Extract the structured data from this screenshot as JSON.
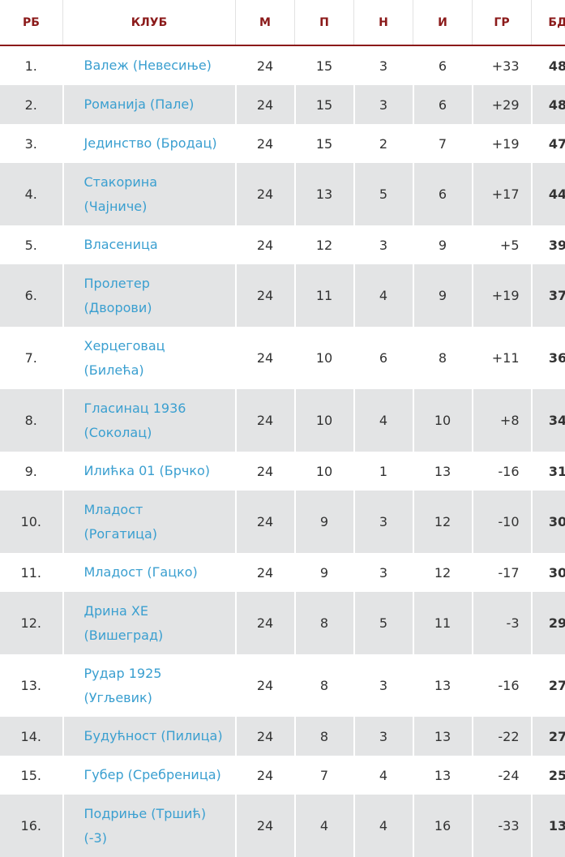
{
  "table": {
    "header": [
      "РБ",
      "КЛУБ",
      "М",
      "П",
      "Н",
      "И",
      "ГР",
      "БД"
    ],
    "rows": [
      [
        "1.",
        [
          "Валеж (Невесиње)"
        ],
        "24",
        "15",
        "3",
        "6",
        "+33",
        "48"
      ],
      [
        "2.",
        [
          "Романија (Пале)"
        ],
        "24",
        "15",
        "3",
        "6",
        "+29",
        "48"
      ],
      [
        "3.",
        [
          "Јединство (Бродац)"
        ],
        "24",
        "15",
        "2",
        "7",
        "+19",
        "47"
      ],
      [
        "4.",
        [
          "Стакорина",
          "(Чајниче)"
        ],
        "24",
        "13",
        "5",
        "6",
        "+17",
        "44"
      ],
      [
        "5.",
        [
          "Власеница"
        ],
        "24",
        "12",
        "3",
        "9",
        "+5",
        "39"
      ],
      [
        "6.",
        [
          "Пролетер",
          "(Дворови)"
        ],
        "24",
        "11",
        "4",
        "9",
        "+19",
        "37"
      ],
      [
        "7.",
        [
          "Херцеговац",
          "(Билећа)"
        ],
        "24",
        "10",
        "6",
        "8",
        "+11",
        "36"
      ],
      [
        "8.",
        [
          "Гласинац 1936",
          "(Соколац)"
        ],
        "24",
        "10",
        "4",
        "10",
        "+8",
        "34"
      ],
      [
        "9.",
        [
          "Илићка 01 (Брчко)"
        ],
        "24",
        "10",
        "1",
        "13",
        "-16",
        "31"
      ],
      [
        "10.",
        [
          "Младост",
          "(Рогатица)"
        ],
        "24",
        "9",
        "3",
        "12",
        "-10",
        "30"
      ],
      [
        "11.",
        [
          "Младост (Гацко)"
        ],
        "24",
        "9",
        "3",
        "12",
        "-17",
        "30"
      ],
      [
        "12.",
        [
          "Дрина ХЕ",
          "(Вишеград)"
        ],
        "24",
        "8",
        "5",
        "11",
        "-3",
        "29"
      ],
      [
        "13.",
        [
          "Рудар 1925",
          "(Угљевик)"
        ],
        "24",
        "8",
        "3",
        "13",
        "-16",
        "27"
      ],
      [
        "14.",
        [
          "Будућност (Пилица)"
        ],
        "24",
        "8",
        "3",
        "13",
        "-22",
        "27"
      ],
      [
        "15.",
        [
          "Губер (Сребреница)"
        ],
        "24",
        "7",
        "4",
        "13",
        "-24",
        "25"
      ],
      [
        "16.",
        [
          "Подриње (Тршић)",
          "(-3)"
        ],
        "24",
        "4",
        "4",
        "16",
        "-33",
        "13"
      ]
    ]
  }
}
